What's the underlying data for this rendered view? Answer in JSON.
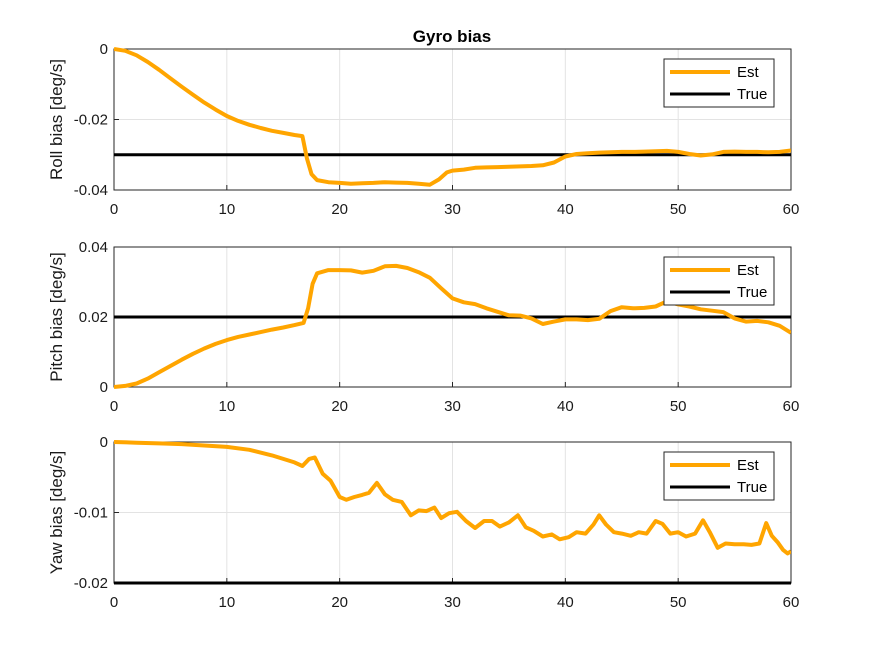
{
  "figure": {
    "title": "Gyro bias"
  },
  "colors": {
    "est": "#ffa500",
    "true": "#000000"
  },
  "chart_data": [
    {
      "type": "line",
      "title": "Gyro bias",
      "xlabel": "",
      "ylabel": "Roll bias [deg/s]",
      "xlim": [
        0,
        60
      ],
      "ylim": [
        -0.04,
        0
      ],
      "xticks": [
        "0",
        "10",
        "20",
        "30",
        "40",
        "50",
        "60"
      ],
      "yticks": [
        "-0.04",
        "-0.02",
        "0"
      ],
      "grid": true,
      "legend": "top-right",
      "series": [
        {
          "name": "Est",
          "x": [
            0,
            1,
            2,
            3,
            4,
            5,
            6,
            7,
            8,
            9,
            10,
            11,
            12,
            13,
            14,
            15,
            16,
            16.7,
            17.1,
            17.5,
            18,
            19,
            20,
            21,
            22,
            23,
            24,
            25,
            26,
            27,
            28,
            28.8,
            29.5,
            30,
            31,
            32,
            33,
            34,
            35,
            36,
            37,
            38,
            39,
            40,
            41,
            42,
            43,
            44,
            45,
            46,
            47,
            48,
            49,
            50,
            51,
            52,
            53,
            54,
            55,
            56,
            57,
            58,
            59,
            60
          ],
          "y": [
            0,
            -0.0005,
            -0.0018,
            -0.0037,
            -0.0059,
            -0.0083,
            -0.0107,
            -0.013,
            -0.0152,
            -0.0172,
            -0.019,
            -0.0204,
            -0.0215,
            -0.0224,
            -0.0232,
            -0.0238,
            -0.0244,
            -0.0247,
            -0.031,
            -0.0355,
            -0.0372,
            -0.0378,
            -0.038,
            -0.0382,
            -0.0381,
            -0.038,
            -0.0378,
            -0.0379,
            -0.038,
            -0.0382,
            -0.0385,
            -0.037,
            -0.035,
            -0.0345,
            -0.0342,
            -0.0337,
            -0.0336,
            -0.0335,
            -0.0334,
            -0.0333,
            -0.0332,
            -0.033,
            -0.0322,
            -0.0305,
            -0.0298,
            -0.0296,
            -0.0294,
            -0.0293,
            -0.0292,
            -0.0292,
            -0.0291,
            -0.029,
            -0.0289,
            -0.0292,
            -0.0298,
            -0.0302,
            -0.0299,
            -0.0292,
            -0.0291,
            -0.0292,
            -0.0292,
            -0.0293,
            -0.0292,
            -0.0288
          ]
        },
        {
          "name": "True",
          "x": [
            0,
            60
          ],
          "y": [
            -0.03,
            -0.03
          ]
        }
      ]
    },
    {
      "type": "line",
      "title": "",
      "xlabel": "",
      "ylabel": "Pitch bias [deg/s]",
      "xlim": [
        0,
        60
      ],
      "ylim": [
        0,
        0.04
      ],
      "xticks": [
        "0",
        "10",
        "20",
        "30",
        "40",
        "50",
        "60"
      ],
      "yticks": [
        "0",
        "0.02",
        "0.04"
      ],
      "grid": true,
      "legend": "top-right",
      "series": [
        {
          "name": "Est",
          "x": [
            0,
            1,
            2,
            3,
            4,
            5,
            6,
            7,
            8,
            9,
            10,
            11,
            12,
            13,
            14,
            15,
            16,
            16.8,
            17.2,
            17.6,
            18,
            19,
            20,
            21,
            22,
            23,
            24,
            25,
            26,
            27,
            28,
            29,
            30,
            31,
            32,
            33,
            34,
            35,
            36,
            37,
            38,
            39,
            40,
            41,
            42,
            43,
            44,
            45,
            46,
            47,
            48,
            49,
            50,
            51,
            52,
            53,
            54,
            55,
            56,
            57,
            58,
            59,
            60
          ],
          "y": [
            0,
            0.0003,
            0.001,
            0.0024,
            0.0042,
            0.006,
            0.0078,
            0.0095,
            0.011,
            0.0123,
            0.0134,
            0.0143,
            0.015,
            0.0157,
            0.0164,
            0.017,
            0.0177,
            0.0183,
            0.0225,
            0.0295,
            0.0325,
            0.0334,
            0.0334,
            0.0333,
            0.0327,
            0.0332,
            0.0345,
            0.0346,
            0.034,
            0.0328,
            0.0312,
            0.0282,
            0.0253,
            0.0242,
            0.0237,
            0.0225,
            0.0215,
            0.0205,
            0.0204,
            0.0196,
            0.018,
            0.0187,
            0.0193,
            0.0193,
            0.0191,
            0.0195,
            0.0217,
            0.0228,
            0.0225,
            0.0226,
            0.023,
            0.0245,
            0.0236,
            0.023,
            0.0222,
            0.0218,
            0.0214,
            0.0196,
            0.0187,
            0.0189,
            0.0185,
            0.0175,
            0.0155
          ]
        },
        {
          "name": "True",
          "x": [
            0,
            60
          ],
          "y": [
            0.02,
            0.02
          ]
        }
      ]
    },
    {
      "type": "line",
      "title": "",
      "xlabel": "",
      "ylabel": "Yaw bias [deg/s]",
      "xlim": [
        0,
        60
      ],
      "ylim": [
        -0.02,
        0
      ],
      "xticks": [
        "0",
        "10",
        "20",
        "30",
        "40",
        "50",
        "60"
      ],
      "yticks": [
        "-0.02",
        "-0.01",
        "0"
      ],
      "grid": true,
      "legend": "top-right",
      "series": [
        {
          "name": "Est",
          "x": [
            0,
            2,
            4,
            6,
            8,
            10,
            12,
            14,
            16,
            16.7,
            17.3,
            17.8,
            18.5,
            19.2,
            20,
            20.6,
            21.3,
            22,
            22.6,
            23.3,
            24,
            24.7,
            25.5,
            26.3,
            27,
            27.7,
            28.4,
            29,
            29.7,
            30.4,
            31.2,
            32,
            32.8,
            33.5,
            34.2,
            35,
            35.8,
            36.5,
            37.2,
            38,
            38.8,
            39.5,
            40.3,
            41,
            41.8,
            42.5,
            43,
            43.6,
            44.3,
            45,
            45.8,
            46.5,
            47.2,
            48,
            48.6,
            49.3,
            50,
            50.7,
            51.5,
            52.2,
            52.8,
            53.5,
            54.2,
            55,
            55.8,
            56.5,
            57.2,
            57.8,
            58.3,
            58.8,
            59.3,
            59.7,
            60
          ],
          "y": [
            0,
            -0.0001,
            -0.0002,
            -0.0003,
            -0.0005,
            -0.0007,
            -0.0011,
            -0.0019,
            -0.0029,
            -0.0034,
            -0.0024,
            -0.0022,
            -0.0045,
            -0.0055,
            -0.0078,
            -0.0082,
            -0.0078,
            -0.0075,
            -0.0072,
            -0.0058,
            -0.0074,
            -0.0082,
            -0.0085,
            -0.0104,
            -0.0097,
            -0.0098,
            -0.0093,
            -0.0108,
            -0.0101,
            -0.0099,
            -0.0112,
            -0.0122,
            -0.0112,
            -0.0112,
            -0.012,
            -0.0114,
            -0.0104,
            -0.0121,
            -0.0126,
            -0.0134,
            -0.0131,
            -0.0138,
            -0.0135,
            -0.0128,
            -0.013,
            -0.0117,
            -0.0104,
            -0.0117,
            -0.0128,
            -0.013,
            -0.0133,
            -0.0128,
            -0.013,
            -0.0112,
            -0.0116,
            -0.013,
            -0.0128,
            -0.0134,
            -0.013,
            -0.0111,
            -0.0128,
            -0.015,
            -0.0144,
            -0.0145,
            -0.0145,
            -0.0146,
            -0.0144,
            -0.0115,
            -0.0133,
            -0.0142,
            -0.0153,
            -0.0158,
            -0.0155
          ]
        },
        {
          "name": "True",
          "x": [
            0,
            60
          ],
          "y": [
            -0.02,
            -0.02
          ]
        }
      ]
    }
  ]
}
